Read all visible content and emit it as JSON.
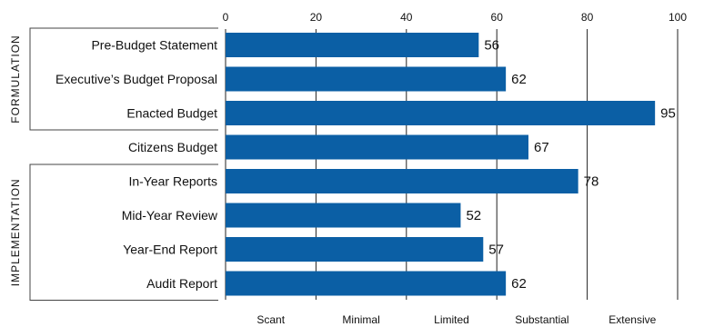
{
  "chart_data": {
    "type": "bar",
    "orientation": "horizontal",
    "categories": [
      "Pre-Budget Statement",
      "Executive’s Budget Proposal",
      "Enacted Budget",
      "Citizens Budget",
      "In-Year Reports",
      "Mid-Year Review",
      "Year-End Report",
      "Audit Report"
    ],
    "values": [
      56,
      62,
      95,
      67,
      78,
      52,
      57,
      62
    ],
    "xlim": [
      0,
      100
    ],
    "xticks": [
      "0",
      "20",
      "40",
      "60",
      "80",
      "100"
    ],
    "bands": [
      "Scant",
      "Minimal",
      "Limited",
      "Substantial",
      "Extensive"
    ],
    "groups": [
      {
        "label": "FORMULATION",
        "from": 0,
        "to": 2
      },
      {
        "label": "IMPLEMENTATION",
        "from": 4,
        "to": 7
      }
    ],
    "bar_color": "#0b5fa5",
    "grid": true
  }
}
